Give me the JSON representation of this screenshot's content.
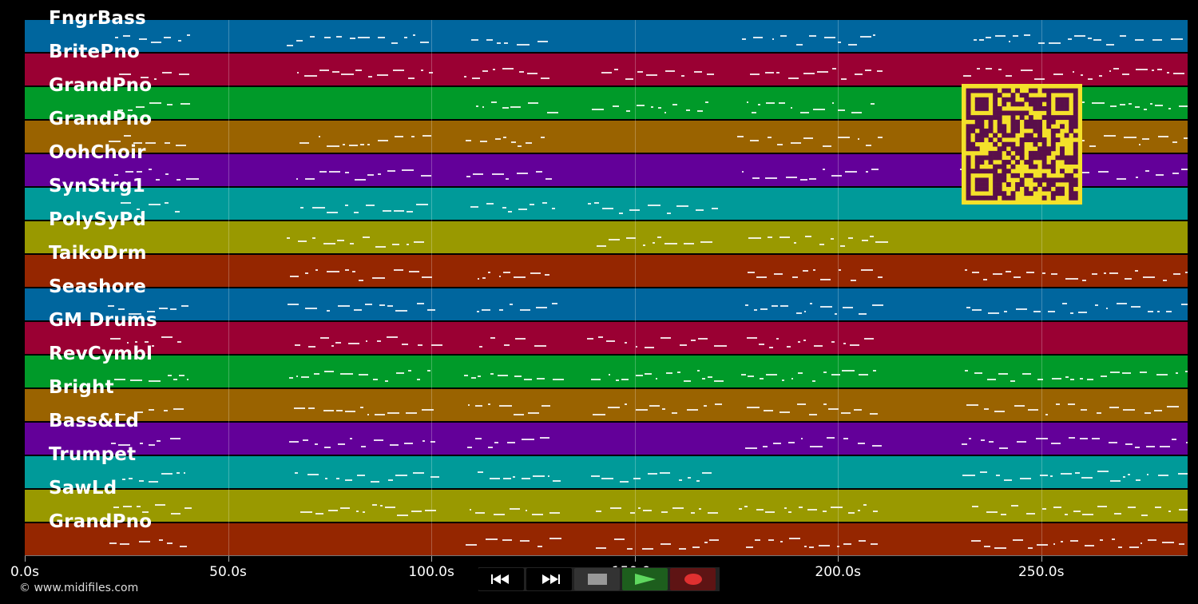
{
  "tracks": [
    {
      "name": "FngrBass",
      "color": "#00669e"
    },
    {
      "name": "BritePno",
      "color": "#9a0033"
    },
    {
      "name": "GrandPno",
      "color": "#009a29"
    },
    {
      "name": "GrandPno",
      "color": "#9a6300"
    },
    {
      "name": "OohChoir",
      "color": "#630099"
    },
    {
      "name": "SynStrg1",
      "color": "#009a99"
    },
    {
      "name": "PolySyPd",
      "color": "#999900"
    },
    {
      "name": "TaikoDrm",
      "color": "#952600"
    },
    {
      "name": "Seashore",
      "color": "#00669e"
    },
    {
      "name": "GM Drums",
      "color": "#9a0033"
    },
    {
      "name": "RevCymbl",
      "color": "#009a29"
    },
    {
      "name": "Bright",
      "color": "#9a6300"
    },
    {
      "name": "Bass&Ld",
      "color": "#630099"
    },
    {
      "name": "Trumpet",
      "color": "#009a99"
    },
    {
      "name": "SawLd",
      "color": "#999900"
    },
    {
      "name": "GrandPno",
      "color": "#952600"
    }
  ],
  "timeline": {
    "start_s": 0,
    "end_s": 286,
    "ticks": [
      {
        "value": 0,
        "label": "0.0s"
      },
      {
        "value": 50,
        "label": "50.0s"
      },
      {
        "value": 100,
        "label": "100.0s"
      },
      {
        "value": 150,
        "label": "150.0s"
      },
      {
        "value": 200,
        "label": "200.0s"
      },
      {
        "value": 250,
        "label": "250.0s"
      }
    ]
  },
  "transport": {
    "buttons": [
      {
        "id": "rewind",
        "icon": "rewind-icon",
        "color": "#000000"
      },
      {
        "id": "fast-forward",
        "icon": "fast-forward-icon",
        "color": "#000000"
      },
      {
        "id": "stop",
        "icon": "stop-icon",
        "color": "#333333"
      },
      {
        "id": "play",
        "icon": "play-icon",
        "color": "#1d5e1d"
      },
      {
        "id": "record",
        "icon": "record-icon",
        "color": "#5e1414"
      }
    ]
  },
  "copyright": "© www.midifiles.com",
  "qr_code": {
    "icon": "qr-code-icon",
    "color": "#f4e12a",
    "fg": "#5a0f4a"
  }
}
